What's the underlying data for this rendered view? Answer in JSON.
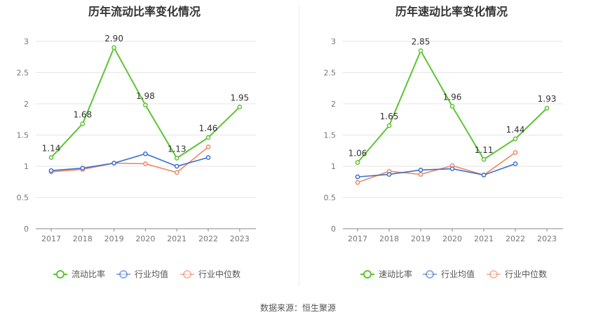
{
  "source_text": "数据来源：恒生聚源",
  "chart_data": [
    {
      "type": "line",
      "title": "历年流动比率变化情况",
      "categories": [
        "2017",
        "2018",
        "2019",
        "2020",
        "2021",
        "2022",
        "2023"
      ],
      "ylim": [
        0,
        3
      ],
      "yticks": [
        "0",
        "0.5",
        "1",
        "1.5",
        "2",
        "2.5",
        "3"
      ],
      "grid": true,
      "legend_position": "bottom",
      "series": [
        {
          "name": "流动比率",
          "color": "#5dc433",
          "values": [
            1.14,
            1.68,
            2.9,
            1.98,
            1.13,
            1.46,
            1.95
          ],
          "labels": [
            "1.14",
            "1.68",
            "2.90",
            "1.98",
            "1.13",
            "1.46",
            "1.95"
          ]
        },
        {
          "name": "行业均值",
          "color": "#3b6fd1",
          "values": [
            0.93,
            0.97,
            1.05,
            1.2,
            1.0,
            1.14,
            null
          ]
        },
        {
          "name": "行业中位数",
          "color": "#ef8a62",
          "values": [
            0.91,
            0.95,
            1.05,
            1.04,
            0.9,
            1.31,
            null
          ]
        }
      ]
    },
    {
      "type": "line",
      "title": "历年速动比率变化情况",
      "categories": [
        "2017",
        "2018",
        "2019",
        "2020",
        "2021",
        "2022",
        "2023"
      ],
      "ylim": [
        0,
        3
      ],
      "yticks": [
        "0",
        "0.5",
        "1",
        "1.5",
        "2",
        "2.5",
        "3"
      ],
      "grid": true,
      "legend_position": "bottom",
      "series": [
        {
          "name": "速动比率",
          "color": "#5dc433",
          "values": [
            1.06,
            1.65,
            2.85,
            1.96,
            1.11,
            1.44,
            1.93
          ],
          "labels": [
            "1.06",
            "1.65",
            "2.85",
            "1.96",
            "1.11",
            "1.44",
            "1.93"
          ]
        },
        {
          "name": "行业均值",
          "color": "#3b6fd1",
          "values": [
            0.83,
            0.87,
            0.94,
            0.96,
            0.86,
            1.04,
            null
          ]
        },
        {
          "name": "行业中位数",
          "color": "#ef8a62",
          "values": [
            0.74,
            0.92,
            0.87,
            1.01,
            0.86,
            1.22,
            null
          ]
        }
      ]
    }
  ]
}
